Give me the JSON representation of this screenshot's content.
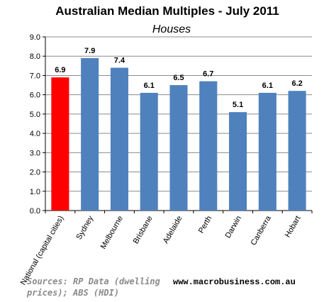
{
  "chart_data": {
    "type": "bar",
    "title": "Australian Median Multiples - July 2011",
    "subtitle": "Houses",
    "categories": [
      "National (capital cities)",
      "Sydney",
      "Melbourne",
      "Brisbane",
      "Adelaide",
      "Perth",
      "Darwin",
      "Canberra",
      "Hobart"
    ],
    "values": [
      6.9,
      7.9,
      7.4,
      6.1,
      6.5,
      6.7,
      5.1,
      6.1,
      6.2
    ],
    "data_labels": [
      "6.9",
      "7.9",
      "7.4",
      "6.1",
      "6.5",
      "6.7",
      "5.1",
      "6.1",
      "6.2"
    ],
    "bar_colors": [
      "#ff0000",
      "#4f81bd",
      "#4f81bd",
      "#4f81bd",
      "#4f81bd",
      "#4f81bd",
      "#4f81bd",
      "#4f81bd",
      "#4f81bd"
    ],
    "ylim": [
      0,
      9
    ],
    "yticks": [
      "0.0",
      "1.0",
      "2.0",
      "3.0",
      "4.0",
      "5.0",
      "6.0",
      "7.0",
      "8.0",
      "9.0"
    ],
    "grid": true,
    "legend": "none"
  },
  "footer": {
    "source_line1": "Sources: RP Data (dwelling",
    "source_line2": "prices); ABS (HDI)",
    "website": "www.macrobusiness.com.au"
  }
}
